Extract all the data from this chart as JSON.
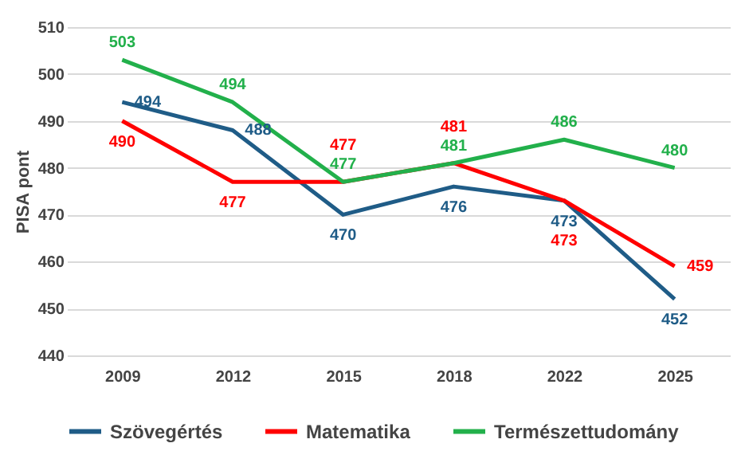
{
  "chart_data": {
    "type": "line",
    "ylabel": "PISA pont",
    "categories": [
      "2009",
      "2012",
      "2015",
      "2018",
      "2022",
      "2025"
    ],
    "series": [
      {
        "name": "Szövegértés",
        "color": "#1f5c87",
        "values": [
          494,
          488,
          470,
          476,
          473,
          452
        ]
      },
      {
        "name": "Matematika",
        "color": "#ff0000",
        "values": [
          490,
          477,
          477,
          481,
          473,
          459
        ]
      },
      {
        "name": "Természettudomány",
        "color": "#22b04b",
        "values": [
          503,
          494,
          477,
          481,
          486,
          480
        ]
      }
    ],
    "ylim": [
      440,
      510
    ],
    "yticks": [
      440,
      450,
      460,
      470,
      480,
      490,
      500,
      510
    ],
    "grid": "y",
    "legend": "bottom",
    "data_labels": true,
    "marker": "none",
    "line_style": "solid"
  }
}
